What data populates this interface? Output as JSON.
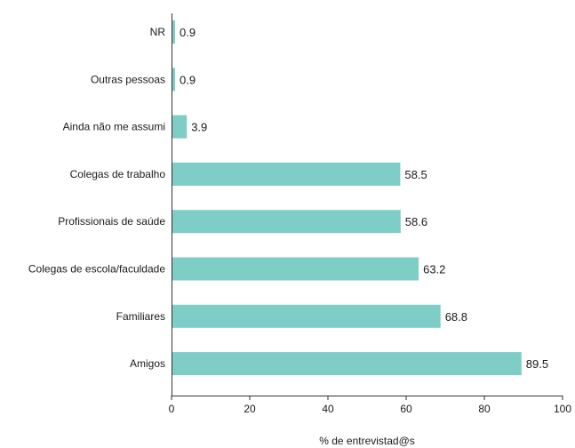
{
  "chart_data": {
    "type": "bar",
    "orientation": "horizontal",
    "categories": [
      "NR",
      "Outras pessoas",
      "Ainda não me assumi",
      "Colegas de trabalho",
      "Profissionais de saúde",
      "Colegas de escola/faculdade",
      "Familiares",
      "Amigos"
    ],
    "values": [
      0.9,
      0.9,
      3.9,
      58.5,
      58.6,
      63.2,
      68.8,
      89.5
    ],
    "value_labels": [
      "0.9",
      "0.9",
      "3.9",
      "58.5",
      "58.6",
      "63.2",
      "68.8",
      "89.5"
    ],
    "xlabel": "% de entrevistad@s",
    "xlim": [
      0,
      100
    ],
    "xticks": [
      0,
      20,
      40,
      60,
      80,
      100
    ],
    "xtick_labels": [
      "0",
      "20",
      "40",
      "60",
      "80",
      "100"
    ],
    "grid": false,
    "bar_color": "#7ecdc6"
  }
}
